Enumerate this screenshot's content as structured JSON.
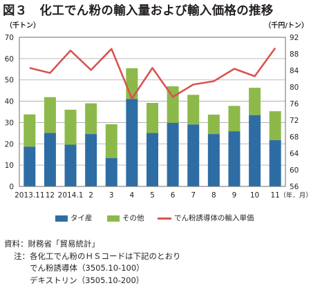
{
  "title": "図３　化工でん粉の輸入量および輸入価格の推移",
  "chart_data": {
    "type": "bar",
    "stacked": true,
    "categories": [
      "2013.11",
      "12",
      "2014.1",
      "2",
      "3",
      "4",
      "5",
      "6",
      "7",
      "8",
      "9",
      "10",
      "11"
    ],
    "x_unit_label": "（年．月）",
    "series": [
      {
        "name": "タイ産",
        "type": "bar",
        "axis": "left",
        "color": "#2e6da4",
        "values": [
          18.7,
          25.1,
          19.6,
          24.6,
          13.3,
          41.1,
          25.1,
          29.9,
          29.1,
          24.6,
          25.9,
          33.5,
          21.8
        ]
      },
      {
        "name": "その他",
        "type": "bar",
        "axis": "left",
        "color": "#8db94a",
        "values": [
          15.1,
          16.8,
          16.4,
          14.4,
          15.9,
          14.4,
          14.1,
          17.1,
          13.9,
          9.1,
          11.9,
          12.8,
          13.5
        ]
      },
      {
        "name": "でん粉誘導体の輸入単価",
        "type": "line",
        "axis": "right",
        "color": "#d9534f",
        "values": [
          84.6,
          83.4,
          88.8,
          84.1,
          89.2,
          77.2,
          84.6,
          77.6,
          80.6,
          81.4,
          84.4,
          82.6,
          89.4
        ]
      }
    ],
    "y_left": {
      "label": "（千トン）",
      "min": 0,
      "max": 70,
      "ticks": [
        0,
        10,
        20,
        30,
        40,
        50,
        60,
        70
      ]
    },
    "y_right": {
      "label": "（千円/トン）",
      "min": 56,
      "max": 92,
      "ticks": [
        56,
        60,
        64,
        68,
        72,
        76,
        80,
        84,
        88,
        92
      ]
    },
    "grid": true,
    "legend_position": "bottom"
  },
  "notes": [
    "資料：財務省「貿易統計」",
    "注：各化工でん粉のＨＳコードは下記のとおり",
    "でん粉誘導体（3505.10-100）",
    "デキストリン（3505.10-200）"
  ]
}
